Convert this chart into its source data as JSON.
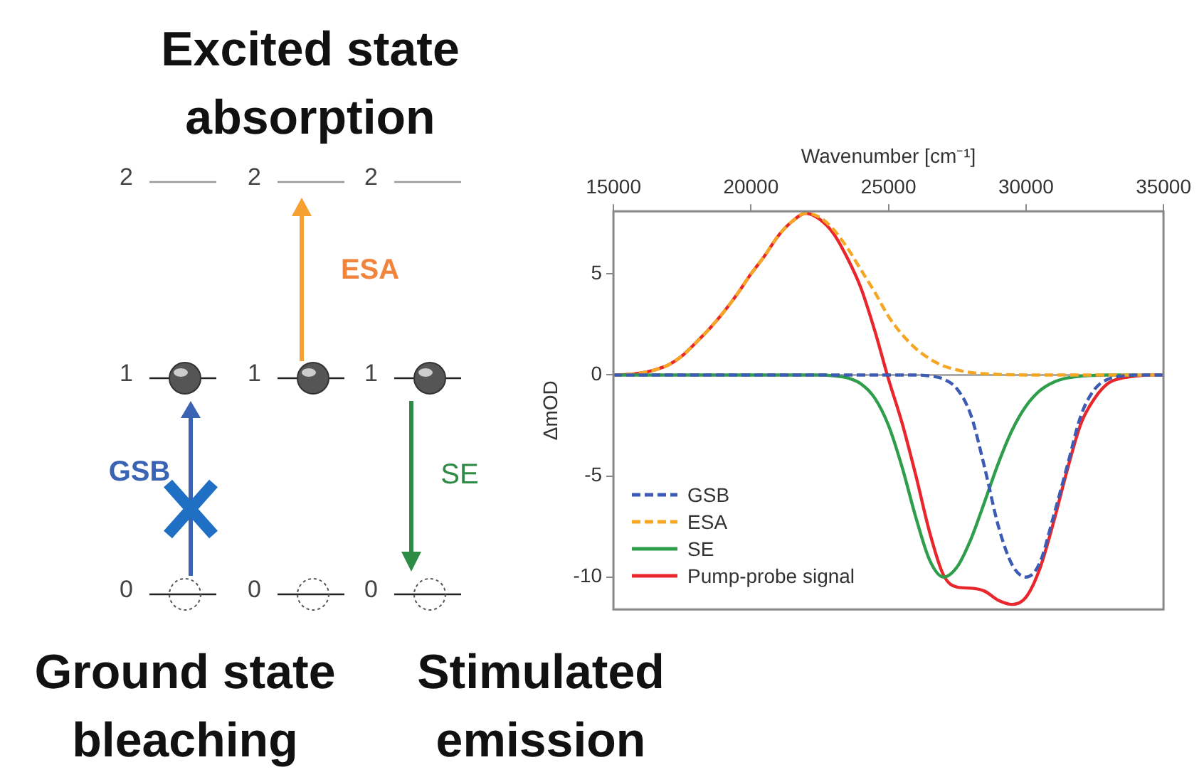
{
  "chart_data": {
    "type": "line",
    "xlabel": "Wavenumber [cm⁻¹]",
    "ylabel": "ΔmOD",
    "x": [
      15000,
      15500,
      16000,
      16500,
      17000,
      17500,
      18000,
      18500,
      19000,
      19500,
      20000,
      20500,
      21000,
      21500,
      22000,
      22500,
      23000,
      23500,
      24000,
      24500,
      25000,
      25500,
      26000,
      26500,
      27000,
      27500,
      28000,
      28500,
      29000,
      29500,
      30000,
      30500,
      31000,
      31500,
      32000,
      32500,
      33000,
      33500,
      34000,
      34500,
      35000
    ],
    "series": [
      {
        "name": "GSB",
        "color": "#3b5bb5",
        "line_style": "dashed",
        "values": [
          0,
          0,
          0,
          0,
          0,
          0,
          0,
          0,
          0,
          0,
          0,
          0,
          0,
          0,
          0,
          0,
          0,
          0,
          0,
          0,
          0,
          0,
          0,
          -0.05,
          -0.2,
          -0.7,
          -2.0,
          -4.6,
          -7.5,
          -9.4,
          -10,
          -9.3,
          -7.0,
          -4.5,
          -2.0,
          -0.7,
          -0.2,
          -0.05,
          0,
          0,
          0
        ]
      },
      {
        "name": "ESA",
        "color": "#f5a623",
        "line_style": "dashed",
        "values": [
          0,
          0.03,
          0.1,
          0.25,
          0.5,
          0.95,
          1.6,
          2.3,
          3.1,
          4.0,
          5.0,
          5.9,
          6.9,
          7.6,
          8.0,
          7.8,
          7.2,
          6.3,
          5.2,
          4.1,
          2.9,
          2.0,
          1.3,
          0.8,
          0.45,
          0.25,
          0.12,
          0.06,
          0.03,
          0.01,
          0,
          0,
          0,
          0,
          0,
          0,
          0,
          0,
          0,
          0,
          0
        ]
      },
      {
        "name": "SE",
        "color": "#2e9e4a",
        "line_style": "solid",
        "values": [
          0,
          0,
          0,
          0,
          0,
          0,
          0,
          0,
          0,
          0,
          0,
          0,
          0,
          0,
          0,
          0,
          -0.04,
          -0.14,
          -0.44,
          -1.14,
          -2.49,
          -4.58,
          -7.07,
          -9.17,
          -10,
          -9.49,
          -8.12,
          -6.26,
          -4.35,
          -2.72,
          -1.54,
          -0.78,
          -0.36,
          -0.15,
          -0.06,
          -0.02,
          0,
          0,
          0,
          null,
          null
        ]
      },
      {
        "name": "Pump-probe signal",
        "color": "#e8262b",
        "line_style": "solid",
        "values": [
          0,
          0.03,
          0.1,
          0.25,
          0.5,
          0.95,
          1.6,
          2.3,
          3.1,
          4.0,
          5.0,
          5.9,
          6.9,
          7.6,
          8.0,
          7.7,
          7.0,
          5.8,
          4.3,
          2.2,
          -0.2,
          -2.4,
          -5.0,
          -7.8,
          -9.9,
          -10.5,
          -10.55,
          -10.7,
          -11.15,
          -11.35,
          -11.0,
          -9.6,
          -7.3,
          -4.7,
          -2.4,
          -1.15,
          -0.4,
          -0.15,
          -0.05,
          0,
          0
        ]
      }
    ],
    "xlim": [
      15000,
      35000
    ],
    "xticks": [
      15000,
      20000,
      25000,
      30000,
      35000
    ],
    "ylim": [
      -11.6,
      8.1
    ],
    "yticks": [
      -10,
      -5,
      0,
      5
    ],
    "ref_lines": [
      {
        "axis": "y",
        "value": 0,
        "color": "#999999"
      }
    ],
    "grid": false,
    "legend": "bottom left",
    "marker": "none",
    "annotations": [
      "Excited state absorption",
      "Ground state bleaching",
      "Stimulated emission",
      "ESA",
      "GSB",
      "SE",
      "2",
      "1",
      "0",
      "2",
      "1",
      "0",
      "2",
      "1",
      "0"
    ]
  }
}
